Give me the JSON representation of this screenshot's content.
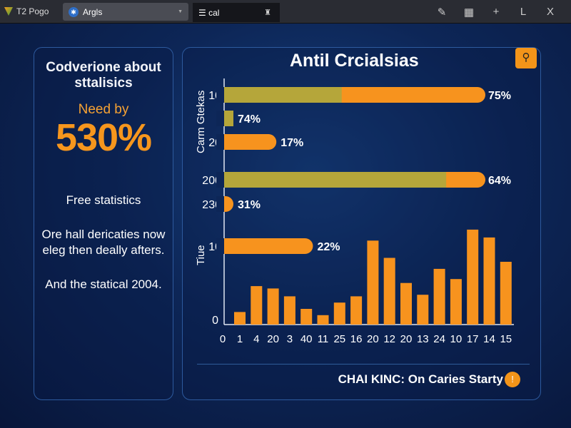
{
  "titlebar": {
    "app_title": "T2 Pogo",
    "tab1_label": "Argls",
    "tab2_label": "cal",
    "tools": [
      "pen-icon",
      "grid-icon",
      "plus-icon",
      "L",
      "close-icon"
    ],
    "tool_glyphs": [
      "✎",
      "▦",
      "+",
      "L",
      "X"
    ]
  },
  "left_panel": {
    "heading": "Codverione about sttalisics",
    "need_label": "Need by",
    "big_value": "530%",
    "free_label": "Free statistics",
    "paragraph": "Ore hall dericaties now eleg then deally afters.",
    "closing": "And the statical 2004."
  },
  "right_panel": {
    "title": "Antil Crcialsias",
    "footer": "CHAI KINC: On Caries Starty",
    "info_glyph": "!"
  },
  "colors": {
    "orange": "#f7931e",
    "olive": "#b5a63a",
    "background": "#0d2657"
  },
  "chart_data": {
    "type": "bar",
    "ylabel_top": "Carm Gtekas",
    "ylabel_bottom": "Tiue",
    "hbars": [
      {
        "tick": "10",
        "label": "75%",
        "fill": 1.0,
        "olive_fill": 0.45
      },
      {
        "tick": "",
        "label": "74%",
        "fill": 0.0,
        "olive_fill": 1.0
      },
      {
        "tick": "20",
        "label": "17%",
        "fill": 0.2,
        "olive_fill": 0
      },
      {
        "tick": "200",
        "label": "64%",
        "fill": 1.0,
        "olive_fill": 0.85
      },
      {
        "tick": "230",
        "label": "31%",
        "fill": 0.0,
        "olive_fill": 0
      },
      {
        "tick": "10",
        "label": "22%",
        "fill": 0.34,
        "olive_fill": 0
      }
    ],
    "y_ticks": [
      "0"
    ],
    "x_ticks": [
      "0",
      "1",
      "4",
      "20",
      "3",
      "40",
      "11",
      "25",
      "16",
      "20",
      "12",
      "20",
      "13",
      "24",
      "10",
      "17",
      "14",
      "15"
    ],
    "values": [
      1.6,
      4.9,
      4.6,
      3.6,
      2.0,
      1.2,
      2.8,
      3.6,
      10.7,
      8.5,
      5.3,
      3.8,
      7.1,
      5.8,
      12.1,
      11.1,
      8.0
    ],
    "ylim": [
      0,
      12
    ]
  }
}
